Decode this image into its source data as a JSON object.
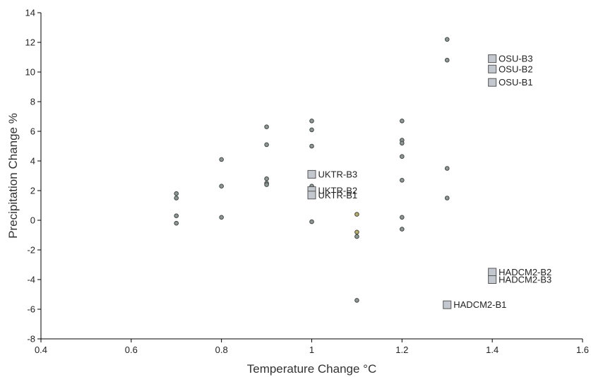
{
  "chart_data": {
    "type": "scatter",
    "xlabel": "Temperature Change °C",
    "ylabel": "Precipitation Change %",
    "xlim": [
      0.4,
      1.6
    ],
    "ylim": [
      -8,
      14
    ],
    "x_ticks": [
      "0.4",
      "0.6",
      "0.8",
      "1",
      "1.2",
      "1.4",
      "1.6"
    ],
    "y_ticks": [
      "-8",
      "-6",
      "-4",
      "-2",
      "0",
      "2",
      "4",
      "6",
      "8",
      "10",
      "12",
      "14"
    ],
    "x_tick_values": [
      0.4,
      0.6,
      0.8,
      1.0,
      1.2,
      1.4,
      1.6
    ],
    "y_tick_values": [
      -8,
      -6,
      -4,
      -2,
      0,
      2,
      4,
      6,
      8,
      10,
      12,
      14
    ],
    "grid": false,
    "series": [
      {
        "marker": "circle",
        "color": "#8a9a92",
        "points": [
          {
            "x": 0.7,
            "y": 1.8
          },
          {
            "x": 0.7,
            "y": 1.5
          },
          {
            "x": 0.7,
            "y": 0.3
          },
          {
            "x": 0.7,
            "y": -0.2
          },
          {
            "x": 0.8,
            "y": 4.1
          },
          {
            "x": 0.8,
            "y": 2.3
          },
          {
            "x": 0.8,
            "y": 0.2
          },
          {
            "x": 0.9,
            "y": 6.3
          },
          {
            "x": 0.9,
            "y": 5.1
          },
          {
            "x": 0.9,
            "y": 2.8
          },
          {
            "x": 0.9,
            "y": 2.5
          },
          {
            "x": 0.9,
            "y": 2.4
          },
          {
            "x": 1.0,
            "y": 6.7
          },
          {
            "x": 1.0,
            "y": 6.1
          },
          {
            "x": 1.0,
            "y": 5.0
          },
          {
            "x": 1.0,
            "y": 2.3
          },
          {
            "x": 1.0,
            "y": -0.1
          },
          {
            "x": 1.1,
            "y": -1.1
          },
          {
            "x": 1.1,
            "y": -5.4
          },
          {
            "x": 1.2,
            "y": 6.7
          },
          {
            "x": 1.2,
            "y": 5.4
          },
          {
            "x": 1.2,
            "y": 5.2
          },
          {
            "x": 1.2,
            "y": 4.3
          },
          {
            "x": 1.2,
            "y": 2.7
          },
          {
            "x": 1.2,
            "y": 0.2
          },
          {
            "x": 1.2,
            "y": -0.6
          },
          {
            "x": 1.3,
            "y": 12.2
          },
          {
            "x": 1.3,
            "y": 10.8
          },
          {
            "x": 1.3,
            "y": 3.5
          },
          {
            "x": 1.3,
            "y": 1.5
          }
        ]
      },
      {
        "marker": "circle",
        "color": "#b8b060",
        "points": [
          {
            "x": 1.1,
            "y": 0.4
          },
          {
            "x": 1.1,
            "y": -0.8
          }
        ]
      },
      {
        "marker": "square",
        "color": "#c3c8ce",
        "points": [
          {
            "x": 1.4,
            "y": 10.9,
            "label": "OSU-B3"
          },
          {
            "x": 1.4,
            "y": 10.2,
            "label": "OSU-B2"
          },
          {
            "x": 1.4,
            "y": 9.3,
            "label": "OSU-B1"
          },
          {
            "x": 1.0,
            "y": 3.1,
            "label": "UKTR-B3"
          },
          {
            "x": 1.0,
            "y": 2.0,
            "label": "UKTR-B2"
          },
          {
            "x": 1.0,
            "y": 1.7,
            "label": "UKTR-B1"
          },
          {
            "x": 1.4,
            "y": -3.5,
            "label": "HADCM2-B2"
          },
          {
            "x": 1.4,
            "y": -4.0,
            "label": "HADCM2-B3"
          },
          {
            "x": 1.3,
            "y": -5.7,
            "label": "HADCM2-B1"
          }
        ]
      }
    ]
  }
}
